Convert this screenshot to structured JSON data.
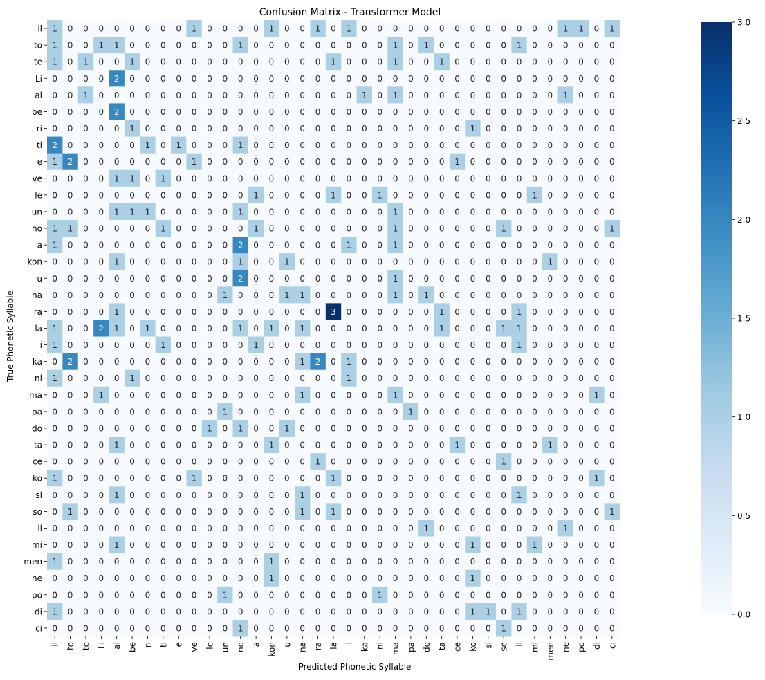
{
  "chart_data": {
    "type": "heatmap",
    "title": "Confusion Matrix - Transformer Model",
    "xlabel": "Predicted Phonetic Syllable",
    "ylabel": "True Phonetic Syllable",
    "x_categories": [
      "il",
      "to",
      "te",
      "Li",
      "al",
      "be",
      "ri",
      "ti",
      "e",
      "ve",
      "le",
      "un",
      "no",
      "a",
      "kon",
      "u",
      "na",
      "ra",
      "la",
      "i",
      "ka",
      "ni",
      "ma",
      "pa",
      "do",
      "ta",
      "ce",
      "ko",
      "si",
      "so",
      "li",
      "mi",
      "men",
      "ne",
      "po",
      "di",
      "ci"
    ],
    "y_categories": [
      "il",
      "to",
      "te",
      "Li",
      "al",
      "be",
      "ri",
      "ti",
      "e",
      "ve",
      "le",
      "un",
      "no",
      "a",
      "kon",
      "u",
      "na",
      "ra",
      "la",
      "i",
      "ka",
      "ni",
      "ma",
      "pa",
      "do",
      "ta",
      "ce",
      "ko",
      "si",
      "so",
      "li",
      "mi",
      "men",
      "ne",
      "po",
      "di",
      "ci"
    ],
    "values": [
      [
        1,
        0,
        0,
        0,
        0,
        0,
        0,
        0,
        0,
        1,
        0,
        0,
        0,
        0,
        1,
        0,
        0,
        1,
        0,
        1,
        0,
        0,
        0,
        0,
        0,
        0,
        0,
        0,
        0,
        0,
        0,
        0,
        0,
        1,
        1,
        0,
        1
      ],
      [
        1,
        0,
        0,
        1,
        1,
        0,
        0,
        0,
        0,
        0,
        0,
        0,
        1,
        0,
        0,
        0,
        0,
        0,
        0,
        0,
        0,
        0,
        1,
        0,
        1,
        0,
        0,
        0,
        0,
        0,
        1,
        0,
        0,
        0,
        0,
        0,
        0
      ],
      [
        1,
        0,
        1,
        0,
        0,
        1,
        0,
        0,
        0,
        0,
        0,
        0,
        0,
        0,
        0,
        0,
        0,
        0,
        1,
        0,
        0,
        0,
        1,
        0,
        0,
        1,
        0,
        0,
        0,
        0,
        0,
        0,
        0,
        0,
        0,
        0,
        0
      ],
      [
        0,
        0,
        0,
        0,
        2,
        0,
        0,
        0,
        0,
        0,
        0,
        0,
        0,
        0,
        0,
        0,
        0,
        0,
        0,
        0,
        0,
        0,
        0,
        0,
        0,
        0,
        0,
        0,
        0,
        0,
        0,
        0,
        0,
        0,
        0,
        0,
        0
      ],
      [
        0,
        0,
        1,
        0,
        0,
        0,
        0,
        0,
        0,
        0,
        0,
        0,
        0,
        0,
        0,
        0,
        0,
        0,
        0,
        0,
        1,
        0,
        1,
        0,
        0,
        0,
        0,
        0,
        0,
        0,
        0,
        0,
        0,
        1,
        0,
        0,
        0
      ],
      [
        0,
        0,
        0,
        0,
        2,
        0,
        0,
        0,
        0,
        0,
        0,
        0,
        0,
        0,
        0,
        0,
        0,
        0,
        0,
        0,
        0,
        0,
        0,
        0,
        0,
        0,
        0,
        0,
        0,
        0,
        0,
        0,
        0,
        0,
        0,
        0,
        0
      ],
      [
        0,
        0,
        0,
        0,
        0,
        1,
        0,
        0,
        0,
        0,
        0,
        0,
        0,
        0,
        0,
        0,
        0,
        0,
        0,
        0,
        0,
        0,
        0,
        0,
        0,
        0,
        0,
        1,
        0,
        0,
        0,
        0,
        0,
        0,
        0,
        0,
        0
      ],
      [
        2,
        0,
        0,
        0,
        0,
        0,
        1,
        0,
        1,
        0,
        0,
        0,
        1,
        0,
        0,
        0,
        0,
        0,
        0,
        0,
        0,
        0,
        0,
        0,
        0,
        0,
        0,
        0,
        0,
        0,
        0,
        0,
        0,
        0,
        0,
        0,
        0
      ],
      [
        1,
        2,
        0,
        0,
        0,
        0,
        0,
        0,
        0,
        1,
        0,
        0,
        0,
        0,
        0,
        0,
        0,
        0,
        0,
        0,
        0,
        0,
        0,
        0,
        0,
        0,
        1,
        0,
        0,
        0,
        0,
        0,
        0,
        0,
        0,
        0,
        0
      ],
      [
        0,
        0,
        0,
        0,
        1,
        1,
        0,
        1,
        0,
        0,
        0,
        0,
        0,
        0,
        0,
        0,
        0,
        0,
        0,
        0,
        0,
        0,
        0,
        0,
        0,
        0,
        0,
        0,
        0,
        0,
        0,
        0,
        0,
        0,
        0,
        0,
        0
      ],
      [
        0,
        0,
        0,
        0,
        0,
        0,
        0,
        0,
        0,
        0,
        0,
        0,
        0,
        1,
        0,
        0,
        0,
        0,
        1,
        0,
        0,
        1,
        0,
        0,
        0,
        0,
        0,
        0,
        0,
        0,
        0,
        1,
        0,
        0,
        0,
        0,
        0
      ],
      [
        0,
        0,
        0,
        0,
        1,
        1,
        1,
        0,
        0,
        0,
        0,
        0,
        1,
        0,
        0,
        0,
        0,
        0,
        0,
        0,
        0,
        0,
        1,
        0,
        0,
        0,
        0,
        0,
        0,
        0,
        0,
        0,
        0,
        0,
        0,
        0,
        0
      ],
      [
        1,
        1,
        0,
        0,
        0,
        0,
        0,
        1,
        0,
        0,
        0,
        0,
        0,
        1,
        0,
        0,
        0,
        0,
        0,
        0,
        0,
        0,
        1,
        0,
        0,
        0,
        0,
        0,
        0,
        1,
        0,
        0,
        0,
        0,
        0,
        0,
        1
      ],
      [
        1,
        0,
        0,
        0,
        0,
        0,
        0,
        0,
        0,
        0,
        0,
        0,
        2,
        0,
        0,
        0,
        0,
        0,
        0,
        1,
        0,
        0,
        1,
        0,
        0,
        0,
        0,
        0,
        0,
        0,
        0,
        0,
        0,
        0,
        0,
        0,
        0
      ],
      [
        0,
        0,
        0,
        0,
        1,
        0,
        0,
        0,
        0,
        0,
        0,
        0,
        1,
        0,
        0,
        1,
        0,
        0,
        0,
        0,
        0,
        0,
        0,
        0,
        0,
        0,
        0,
        0,
        0,
        0,
        0,
        0,
        1,
        0,
        0,
        0,
        0
      ],
      [
        0,
        0,
        0,
        0,
        0,
        0,
        0,
        0,
        0,
        0,
        0,
        0,
        2,
        0,
        0,
        0,
        0,
        0,
        0,
        0,
        0,
        0,
        1,
        0,
        0,
        0,
        0,
        0,
        0,
        0,
        0,
        0,
        0,
        0,
        0,
        0,
        0
      ],
      [
        0,
        0,
        0,
        0,
        0,
        0,
        0,
        0,
        0,
        0,
        0,
        1,
        0,
        0,
        0,
        1,
        1,
        0,
        0,
        0,
        0,
        0,
        1,
        0,
        1,
        0,
        0,
        0,
        0,
        0,
        0,
        0,
        0,
        0,
        0,
        0,
        0
      ],
      [
        0,
        0,
        0,
        0,
        1,
        0,
        0,
        0,
        0,
        0,
        0,
        0,
        0,
        0,
        0,
        0,
        0,
        0,
        3,
        0,
        0,
        0,
        0,
        0,
        0,
        1,
        0,
        0,
        0,
        0,
        1,
        0,
        0,
        0,
        0,
        0,
        0
      ],
      [
        1,
        0,
        0,
        2,
        1,
        0,
        1,
        0,
        0,
        0,
        0,
        0,
        1,
        0,
        1,
        0,
        1,
        0,
        0,
        0,
        0,
        0,
        0,
        0,
        0,
        1,
        0,
        0,
        0,
        1,
        1,
        0,
        0,
        0,
        0,
        0,
        0
      ],
      [
        1,
        0,
        0,
        0,
        0,
        0,
        0,
        1,
        0,
        0,
        0,
        0,
        0,
        1,
        0,
        0,
        0,
        0,
        0,
        0,
        0,
        0,
        0,
        0,
        0,
        0,
        0,
        0,
        0,
        0,
        1,
        0,
        0,
        0,
        0,
        0,
        0
      ],
      [
        0,
        2,
        0,
        0,
        0,
        0,
        0,
        0,
        0,
        0,
        0,
        0,
        0,
        0,
        0,
        0,
        1,
        2,
        0,
        1,
        0,
        0,
        0,
        0,
        0,
        0,
        0,
        0,
        0,
        0,
        0,
        0,
        0,
        0,
        0,
        0,
        0
      ],
      [
        1,
        0,
        0,
        0,
        0,
        1,
        0,
        0,
        0,
        0,
        0,
        0,
        0,
        0,
        0,
        0,
        0,
        0,
        0,
        1,
        0,
        0,
        0,
        0,
        0,
        0,
        0,
        0,
        0,
        0,
        0,
        0,
        0,
        0,
        0,
        0,
        0
      ],
      [
        0,
        0,
        0,
        1,
        0,
        0,
        0,
        0,
        0,
        0,
        0,
        0,
        0,
        0,
        0,
        0,
        1,
        0,
        0,
        0,
        0,
        0,
        1,
        0,
        0,
        0,
        0,
        0,
        0,
        0,
        0,
        0,
        0,
        0,
        0,
        1,
        0
      ],
      [
        0,
        0,
        0,
        0,
        0,
        0,
        0,
        0,
        0,
        0,
        0,
        1,
        0,
        0,
        0,
        0,
        0,
        0,
        0,
        0,
        0,
        0,
        0,
        1,
        0,
        0,
        0,
        0,
        0,
        0,
        0,
        0,
        0,
        0,
        0,
        0,
        0
      ],
      [
        0,
        0,
        0,
        0,
        0,
        0,
        0,
        0,
        0,
        0,
        1,
        0,
        1,
        0,
        0,
        1,
        0,
        0,
        0,
        0,
        0,
        0,
        0,
        0,
        0,
        0,
        0,
        0,
        0,
        0,
        0,
        0,
        0,
        0,
        0,
        0,
        0
      ],
      [
        0,
        0,
        0,
        0,
        1,
        0,
        0,
        0,
        0,
        0,
        0,
        0,
        0,
        0,
        1,
        0,
        0,
        0,
        0,
        0,
        0,
        0,
        0,
        0,
        0,
        0,
        1,
        0,
        0,
        0,
        0,
        0,
        1,
        0,
        0,
        0,
        0
      ],
      [
        0,
        0,
        0,
        0,
        0,
        0,
        0,
        0,
        0,
        0,
        0,
        0,
        0,
        0,
        0,
        0,
        0,
        1,
        0,
        0,
        0,
        0,
        0,
        0,
        0,
        0,
        0,
        0,
        0,
        1,
        0,
        0,
        0,
        0,
        0,
        0,
        0
      ],
      [
        1,
        0,
        0,
        0,
        0,
        0,
        0,
        0,
        0,
        1,
        0,
        0,
        0,
        0,
        0,
        0,
        0,
        0,
        1,
        0,
        0,
        0,
        0,
        0,
        0,
        0,
        0,
        0,
        0,
        0,
        0,
        0,
        0,
        0,
        0,
        1,
        0
      ],
      [
        0,
        0,
        0,
        0,
        1,
        0,
        0,
        0,
        0,
        0,
        0,
        0,
        0,
        0,
        0,
        0,
        1,
        0,
        0,
        0,
        0,
        0,
        0,
        0,
        0,
        0,
        0,
        0,
        0,
        0,
        1,
        0,
        0,
        0,
        0,
        0,
        0
      ],
      [
        0,
        1,
        0,
        0,
        0,
        0,
        0,
        0,
        0,
        0,
        0,
        0,
        0,
        0,
        0,
        0,
        1,
        0,
        1,
        0,
        0,
        0,
        0,
        0,
        0,
        0,
        0,
        0,
        0,
        0,
        0,
        0,
        0,
        0,
        0,
        0,
        1
      ],
      [
        0,
        0,
        0,
        0,
        0,
        0,
        0,
        0,
        0,
        0,
        0,
        0,
        0,
        0,
        0,
        0,
        0,
        0,
        0,
        0,
        0,
        0,
        0,
        0,
        1,
        0,
        0,
        0,
        0,
        0,
        0,
        0,
        0,
        1,
        0,
        0,
        0
      ],
      [
        0,
        0,
        0,
        0,
        1,
        0,
        0,
        0,
        0,
        0,
        0,
        0,
        0,
        0,
        0,
        0,
        0,
        0,
        0,
        0,
        0,
        0,
        0,
        0,
        0,
        0,
        0,
        1,
        0,
        0,
        0,
        1,
        0,
        0,
        0,
        0,
        0
      ],
      [
        1,
        0,
        0,
        0,
        0,
        0,
        0,
        0,
        0,
        0,
        0,
        0,
        0,
        0,
        1,
        0,
        0,
        0,
        0,
        0,
        0,
        0,
        0,
        0,
        0,
        0,
        0,
        0,
        0,
        0,
        0,
        0,
        0,
        0,
        0,
        0,
        0
      ],
      [
        0,
        0,
        0,
        0,
        0,
        0,
        0,
        0,
        0,
        0,
        0,
        0,
        0,
        0,
        1,
        0,
        0,
        0,
        0,
        0,
        0,
        0,
        0,
        0,
        0,
        0,
        0,
        1,
        0,
        0,
        0,
        0,
        0,
        0,
        0,
        0,
        0
      ],
      [
        0,
        0,
        0,
        0,
        0,
        0,
        0,
        0,
        0,
        0,
        0,
        1,
        0,
        0,
        0,
        0,
        0,
        0,
        0,
        0,
        0,
        1,
        0,
        0,
        0,
        0,
        0,
        0,
        0,
        0,
        0,
        0,
        0,
        0,
        0,
        0,
        0
      ],
      [
        1,
        0,
        0,
        0,
        0,
        0,
        0,
        0,
        0,
        0,
        0,
        0,
        0,
        0,
        0,
        0,
        0,
        0,
        0,
        0,
        0,
        0,
        0,
        0,
        0,
        0,
        0,
        1,
        1,
        0,
        1,
        0,
        0,
        0,
        0,
        0,
        0
      ],
      [
        0,
        0,
        0,
        0,
        0,
        0,
        0,
        0,
        0,
        0,
        0,
        0,
        1,
        0,
        0,
        0,
        0,
        0,
        0,
        0,
        0,
        0,
        0,
        0,
        0,
        0,
        0,
        0,
        0,
        1,
        0,
        0,
        0,
        0,
        0,
        0,
        0
      ]
    ],
    "colorbar": {
      "min": 0,
      "max": 3,
      "ticks": [
        "0.0",
        "0.5",
        "1.0",
        "1.5",
        "2.0",
        "2.5",
        "3.0"
      ]
    },
    "colormap": {
      "name": "Blues",
      "stops": [
        "#f7fbff",
        "#deebf7",
        "#c6dbef",
        "#9ecae1",
        "#6baed6",
        "#4292c6",
        "#2171b5",
        "#08519c",
        "#08306b"
      ]
    }
  }
}
